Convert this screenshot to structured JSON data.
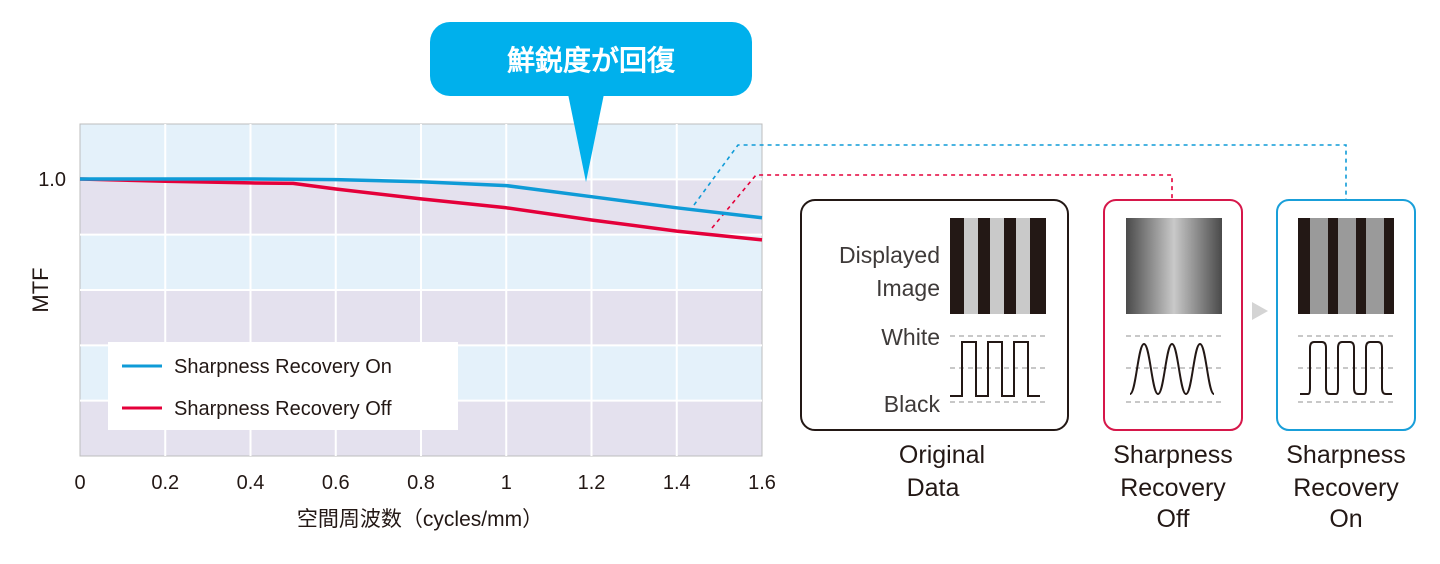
{
  "chart_data": {
    "type": "line",
    "callout": "鮮鋭度が回復",
    "xlabel": "空間周波数（cycles/mm）",
    "ylabel": "MTF",
    "xlim": [
      0,
      1.6
    ],
    "x_ticks": [
      0,
      0.2,
      0.4,
      0.6,
      0.8,
      1,
      1.2,
      1.4,
      1.6
    ],
    "y_ticks": [
      1.0
    ],
    "y_tick_labels": [
      "1.0"
    ],
    "ylim": [
      0.5,
      1.1
    ],
    "grid": true,
    "legend_position": "bottom-left",
    "series": [
      {
        "name": "Sharpness Recovery On",
        "color": "#0f9bd7",
        "x": [
          0,
          0.2,
          0.4,
          0.6,
          0.8,
          1.0,
          1.2,
          1.4,
          1.6
        ],
        "y": [
          1.0,
          1.0,
          1.0,
          0.999,
          0.995,
          0.988,
          0.968,
          0.948,
          0.93
        ]
      },
      {
        "name": "Sharpness Recovery Off",
        "color": "#e4003a",
        "x": [
          0,
          0.2,
          0.4,
          0.5,
          0.6,
          0.8,
          1.0,
          1.2,
          1.4,
          1.6
        ],
        "y": [
          1.0,
          0.996,
          0.993,
          0.992,
          0.982,
          0.964,
          0.948,
          0.926,
          0.906,
          0.89
        ]
      }
    ]
  },
  "panels": {
    "original": {
      "displayed_image_label": [
        "Displayed",
        "Image"
      ],
      "white_label": "White",
      "black_label": "Black",
      "caption": [
        "Original",
        "Data"
      ]
    },
    "off": {
      "caption": [
        "Sharpness",
        "Recovery",
        "Off"
      ]
    },
    "on": {
      "caption": [
        "Sharpness",
        "Recovery",
        "On"
      ]
    }
  },
  "colors": {
    "plot_band_light": "#e4f1fa",
    "plot_band_dark": "#e4e1ee",
    "callout_bg": "#00b0ec",
    "panel_off_border": "#d6174a",
    "panel_on_border": "#199fd9"
  },
  "icons": {
    "arrow": "triangle-right-icon"
  }
}
